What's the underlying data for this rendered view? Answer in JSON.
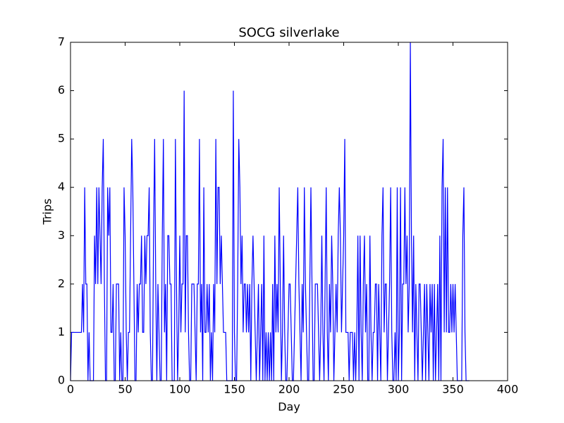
{
  "chart_data": {
    "type": "line",
    "title": "SOCG silverlake",
    "x_label": "Day",
    "y_label": "Trips",
    "x": [
      0,
      1,
      2,
      3,
      4,
      5,
      6,
      7,
      8,
      9,
      10,
      11,
      12,
      13,
      14,
      15,
      16,
      17,
      18,
      19,
      20,
      21,
      22,
      23,
      24,
      25,
      26,
      27,
      28,
      29,
      30,
      31,
      32,
      33,
      34,
      35,
      36,
      37,
      38,
      39,
      40,
      41,
      42,
      43,
      44,
      45,
      46,
      47,
      48,
      49,
      50,
      51,
      52,
      53,
      54,
      55,
      56,
      57,
      58,
      59,
      60,
      61,
      62,
      63,
      64,
      65,
      66,
      67,
      68,
      69,
      70,
      71,
      72,
      73,
      74,
      75,
      76,
      77,
      78,
      79,
      80,
      81,
      82,
      83,
      84,
      85,
      86,
      87,
      88,
      89,
      90,
      91,
      92,
      93,
      94,
      95,
      96,
      97,
      98,
      99,
      100,
      101,
      102,
      103,
      104,
      105,
      106,
      107,
      108,
      109,
      110,
      111,
      112,
      113,
      114,
      115,
      116,
      117,
      118,
      119,
      120,
      121,
      122,
      123,
      124,
      125,
      126,
      127,
      128,
      129,
      130,
      131,
      132,
      133,
      134,
      135,
      136,
      137,
      138,
      139,
      140,
      141,
      142,
      143,
      144,
      145,
      146,
      147,
      148,
      149,
      150,
      151,
      152,
      153,
      154,
      155,
      156,
      157,
      158,
      159,
      160,
      161,
      162,
      163,
      164,
      165,
      166,
      167,
      168,
      169,
      170,
      171,
      172,
      173,
      174,
      175,
      176,
      177,
      178,
      179,
      180,
      181,
      182,
      183,
      184,
      185,
      186,
      187,
      188,
      189,
      190,
      191,
      192,
      193,
      194,
      195,
      196,
      197,
      198,
      199,
      200,
      201,
      202,
      203,
      204,
      205,
      206,
      207,
      208,
      209,
      210,
      211,
      212,
      213,
      214,
      215,
      216,
      217,
      218,
      219,
      220,
      221,
      222,
      223,
      224,
      225,
      226,
      227,
      228,
      229,
      230,
      231,
      232,
      233,
      234,
      235,
      236,
      237,
      238,
      239,
      240,
      241,
      242,
      243,
      244,
      245,
      246,
      247,
      248,
      249,
      250,
      251,
      252,
      253,
      254,
      255,
      256,
      257,
      258,
      259,
      260,
      261,
      262,
      263,
      264,
      265,
      266,
      267,
      268,
      269,
      270,
      271,
      272,
      273,
      274,
      275,
      276,
      277,
      278,
      279,
      280,
      281,
      282,
      283,
      284,
      285,
      286,
      287,
      288,
      289,
      290,
      291,
      292,
      293,
      294,
      295,
      296,
      297,
      298,
      299,
      300,
      301,
      302,
      303,
      304,
      305,
      306,
      307,
      308,
      309,
      310,
      311,
      312,
      313,
      314,
      315,
      316,
      317,
      318,
      319,
      320,
      321,
      322,
      323,
      324,
      325,
      326,
      327,
      328,
      329,
      330,
      331,
      332,
      333,
      334,
      335,
      336,
      337,
      338,
      339,
      340,
      341,
      342,
      343,
      344,
      345,
      346,
      347,
      348,
      349,
      350,
      351,
      352,
      353,
      354,
      355,
      356,
      357,
      358,
      359,
      360,
      361,
      362,
      363,
      364,
      365
    ],
    "series": [
      {
        "name": "Trips",
        "color": "#0000ff",
        "values": [
          0,
          1,
          1,
          1,
          1,
          1,
          1,
          1,
          1,
          1,
          1,
          2,
          1,
          4,
          2,
          2,
          0,
          1,
          0,
          0,
          0,
          0,
          3,
          2,
          4,
          2,
          4,
          3,
          2,
          4,
          5,
          2,
          0,
          0,
          4,
          3,
          4,
          1,
          1,
          2,
          0,
          0,
          2,
          2,
          2,
          0,
          1,
          0,
          0,
          4,
          3,
          1,
          0,
          1,
          1,
          3,
          5,
          4,
          2,
          0,
          0,
          2,
          1,
          2,
          2,
          3,
          1,
          1,
          3,
          2,
          3,
          3,
          4,
          1,
          0,
          0,
          3,
          5,
          2,
          0,
          2,
          1,
          0,
          0,
          3,
          5,
          1,
          2,
          0,
          3,
          3,
          2,
          2,
          0,
          0,
          0,
          5,
          2,
          0,
          1,
          3,
          1,
          2,
          2,
          6,
          1,
          3,
          3,
          1,
          0,
          0,
          2,
          2,
          2,
          1,
          0,
          2,
          2,
          5,
          1,
          2,
          0,
          4,
          1,
          1,
          2,
          1,
          2,
          0,
          1,
          0,
          2,
          1,
          5,
          2,
          4,
          4,
          2,
          3,
          2,
          1,
          1,
          1,
          0,
          0,
          0,
          0,
          0,
          0,
          6,
          1,
          0,
          0,
          2,
          5,
          4,
          2,
          3,
          1,
          2,
          2,
          1,
          2,
          1,
          2,
          0,
          2,
          3,
          2,
          1,
          0,
          1,
          2,
          0,
          1,
          2,
          0,
          3,
          0,
          1,
          0,
          1,
          0,
          1,
          0,
          2,
          0,
          3,
          1,
          2,
          1,
          4,
          2,
          0,
          1,
          3,
          1,
          0,
          0,
          1,
          2,
          2,
          1,
          0,
          0,
          1,
          2,
          3,
          4,
          2,
          1,
          0,
          2,
          1,
          4,
          2,
          1,
          0,
          0,
          2,
          4,
          2,
          0,
          0,
          2,
          2,
          2,
          1,
          0,
          1,
          3,
          1,
          0,
          2,
          4,
          1,
          0,
          2,
          1,
          3,
          2,
          0,
          1,
          2,
          1,
          3,
          4,
          3,
          1,
          2,
          3,
          5,
          1,
          1,
          1,
          0,
          1,
          1,
          1,
          0,
          1,
          0,
          1,
          3,
          0,
          3,
          1,
          0,
          2,
          3,
          1,
          2,
          0,
          0,
          3,
          1,
          0,
          1,
          1,
          2,
          2,
          0,
          2,
          1,
          0,
          3,
          4,
          1,
          2,
          2,
          0,
          1,
          2,
          4,
          1,
          0,
          0,
          1,
          0,
          4,
          0,
          1,
          4,
          0,
          2,
          2,
          4,
          2,
          3,
          1,
          2,
          7,
          3,
          1,
          3,
          0,
          2,
          1,
          0,
          2,
          2,
          1,
          0,
          1,
          2,
          0,
          2,
          1,
          0,
          2,
          1,
          2,
          0,
          2,
          0,
          1,
          2,
          0,
          3,
          0,
          4,
          5,
          1,
          4,
          1,
          4,
          1,
          1,
          2,
          1,
          2,
          1,
          2,
          1,
          0,
          0,
          0,
          0,
          0,
          3,
          4,
          1,
          0,
          0,
          0,
          0
        ]
      }
    ],
    "xlim": [
      0,
      400
    ],
    "xticks": [
      0,
      50,
      100,
      150,
      200,
      250,
      300,
      350,
      400
    ],
    "ylim": [
      0,
      7
    ],
    "yticks": [
      0,
      1,
      2,
      3,
      4,
      5,
      6,
      7
    ]
  }
}
